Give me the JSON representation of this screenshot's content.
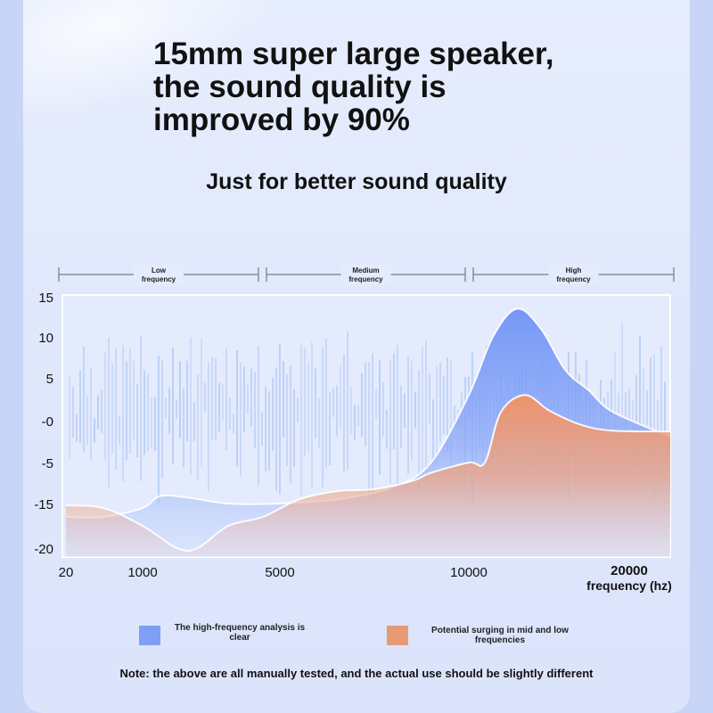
{
  "headline": "15mm super large speaker, the sound quality is improved by 90%",
  "subheadline": "Just for better sound quality",
  "colors": {
    "blue_series": "#7f9ff7",
    "orange_series": "#e89a74",
    "background": "#e3eafc",
    "bracket": "#8a8f9a"
  },
  "chart_data": {
    "type": "area",
    "xlabel": "frequency (hz)",
    "ylabel": "",
    "x_ticks": [
      "20",
      "1000",
      "5000",
      "10000",
      "20000"
    ],
    "y_ticks": [
      "15",
      "10",
      "5",
      "-0",
      "-5",
      "-15",
      "-20"
    ],
    "ylim": [
      -20,
      15
    ],
    "bands": [
      {
        "label": "Low\nfrequency",
        "line1": "Low",
        "line2": "frequency"
      },
      {
        "label": "Medium\nfrequency",
        "line1": "Medium",
        "line2": "frequency"
      },
      {
        "label": "High\nfrequency",
        "line1": "High",
        "line2": "frequency"
      }
    ],
    "series": [
      {
        "name": "The high-frequency analysis is clear",
        "color": "#7f9ff7",
        "x": [
          20,
          500,
          1000,
          1500,
          2300,
          3500,
          5000,
          6500,
          8000,
          9000,
          10000,
          11500,
          13000,
          14500,
          16000,
          17500,
          19000,
          21000
        ],
        "values": [
          -16.5,
          -16.5,
          -15.5,
          -13.2,
          -13.5,
          -15,
          -15,
          -14,
          -11,
          -5,
          3,
          10,
          13.5,
          11,
          6,
          3.5,
          1,
          -2
        ]
      },
      {
        "name": "Potential surging in mid and low frequencies",
        "color": "#e89a74",
        "x": [
          20,
          500,
          1000,
          2000,
          2600,
          3500,
          4500,
          5500,
          6500,
          7500,
          8500,
          9000,
          10000,
          11000,
          12000,
          13500,
          15000,
          17000,
          19000,
          21000
        ],
        "values": [
          -15.2,
          -15.5,
          -17.5,
          -20.2,
          -20.2,
          -17.5,
          -16.5,
          -14,
          -12,
          -11.5,
          -9.5,
          -7.5,
          -5,
          -5,
          1,
          3,
          1.2,
          -0.5,
          -1.2,
          -1.3
        ]
      }
    ]
  },
  "legend": [
    {
      "label": "The high-frequency analysis is clear",
      "color": "#7f9ff7"
    },
    {
      "label": "Potential surging in mid and low frequencies",
      "color": "#e89a74"
    }
  ],
  "note": "Note: the above are all manually tested, and the actual use should be slightly different"
}
